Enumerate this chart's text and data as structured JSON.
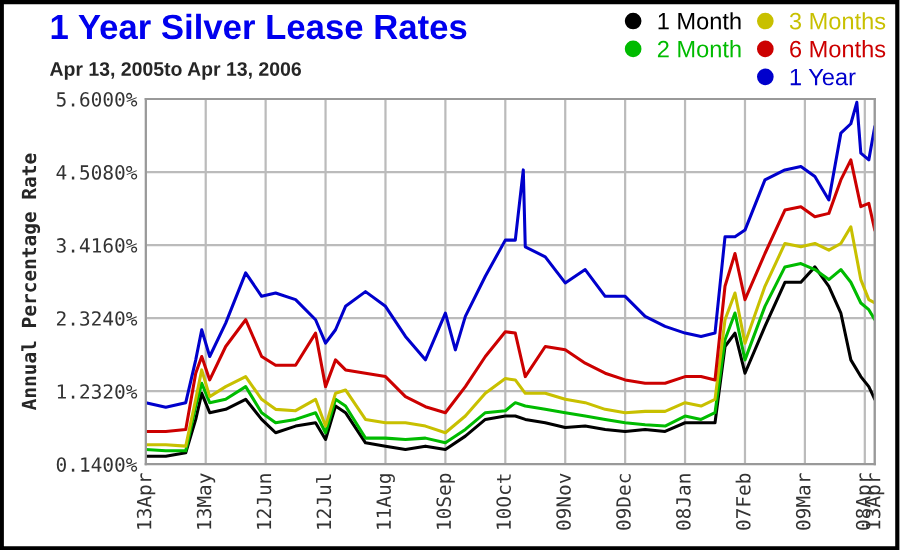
{
  "chart_data": {
    "type": "line",
    "title": "1 Year Silver Lease Rates",
    "subtitle": "Apr 13, 2005to Apr 13, 2006",
    "ylabel": "Annual Percentage Rate",
    "x": [
      "2005-04-13",
      "2005-04-23",
      "2005-05-03",
      "2005-05-08",
      "2005-05-11",
      "2005-05-15",
      "2005-05-23",
      "2005-06-02",
      "2005-06-10",
      "2005-06-17",
      "2005-06-27",
      "2005-07-07",
      "2005-07-12",
      "2005-07-17",
      "2005-07-22",
      "2005-08-01",
      "2005-08-11",
      "2005-08-21",
      "2005-08-31",
      "2005-09-10",
      "2005-09-20",
      "2005-09-30",
      "2005-10-10",
      "2005-10-15",
      "2005-10-20",
      "2005-10-30",
      "2005-11-09",
      "2005-11-19",
      "2005-11-29",
      "2005-12-09",
      "2005-12-19",
      "2005-12-29",
      "2006-01-08",
      "2006-01-16",
      "2006-01-23",
      "2006-01-28",
      "2006-02-02",
      "2006-02-07",
      "2006-02-17",
      "2006-02-27",
      "2006-03-07",
      "2006-03-14",
      "2006-03-21",
      "2006-03-27",
      "2006-04-01",
      "2006-04-06",
      "2006-04-10",
      "2006-04-13"
    ],
    "series": [
      {
        "name": "1 Month",
        "color": "#000000",
        "values": [
          0.26,
          0.26,
          0.31,
          0.81,
          1.2,
          0.91,
          0.96,
          1.11,
          0.81,
          0.61,
          0.71,
          0.76,
          0.51,
          1.01,
          0.91,
          0.46,
          0.41,
          0.36,
          0.41,
          0.36,
          0.56,
          0.81,
          0.86,
          0.86,
          0.81,
          0.76,
          0.69,
          0.71,
          0.66,
          0.63,
          0.66,
          0.63,
          0.76,
          0.76,
          0.76,
          1.9,
          2.1,
          1.5,
          2.2,
          2.86,
          2.86,
          3.09,
          2.8,
          2.4,
          1.7,
          1.45,
          1.3,
          1.11
        ]
      },
      {
        "name": "2 Month",
        "color": "#00bb00",
        "values": [
          0.36,
          0.34,
          0.34,
          1.01,
          1.35,
          1.06,
          1.11,
          1.3,
          0.91,
          0.76,
          0.81,
          0.91,
          0.61,
          1.11,
          1.01,
          0.53,
          0.53,
          0.51,
          0.53,
          0.46,
          0.66,
          0.91,
          0.94,
          1.06,
          1.01,
          0.96,
          0.91,
          0.86,
          0.81,
          0.76,
          0.73,
          0.71,
          0.86,
          0.81,
          0.91,
          2.0,
          2.4,
          1.7,
          2.5,
          3.09,
          3.14,
          3.05,
          2.9,
          3.05,
          2.86,
          2.55,
          2.45,
          2.3
        ]
      },
      {
        "name": "3 Months",
        "color": "#c8c000",
        "values": [
          0.43,
          0.43,
          0.41,
          1.11,
          1.55,
          1.15,
          1.3,
          1.45,
          1.11,
          0.96,
          0.94,
          1.11,
          0.71,
          1.2,
          1.25,
          0.81,
          0.76,
          0.76,
          0.71,
          0.61,
          0.86,
          1.2,
          1.42,
          1.4,
          1.2,
          1.2,
          1.11,
          1.06,
          0.96,
          0.91,
          0.93,
          0.93,
          1.06,
          1.01,
          1.11,
          2.3,
          2.7,
          1.95,
          2.8,
          3.44,
          3.39,
          3.44,
          3.34,
          3.44,
          3.69,
          2.9,
          2.6,
          2.55
        ]
      },
      {
        "name": "6 Months",
        "color": "#cc0000",
        "values": [
          0.63,
          0.63,
          0.66,
          1.5,
          1.75,
          1.4,
          1.9,
          2.3,
          1.75,
          1.62,
          1.62,
          2.1,
          1.3,
          1.7,
          1.55,
          1.5,
          1.45,
          1.15,
          1.0,
          0.91,
          1.3,
          1.75,
          2.12,
          2.1,
          1.45,
          1.9,
          1.85,
          1.65,
          1.5,
          1.4,
          1.35,
          1.35,
          1.45,
          1.45,
          1.4,
          2.8,
          3.29,
          2.6,
          3.29,
          3.94,
          3.99,
          3.84,
          3.89,
          4.39,
          4.69,
          3.99,
          4.04,
          3.64
        ]
      },
      {
        "name": "1 Year",
        "color": "#0000cc",
        "x": [
          "2005-04-13",
          "2005-04-23",
          "2005-05-03",
          "2005-05-08",
          "2005-05-11",
          "2005-05-15",
          "2005-05-23",
          "2005-06-02",
          "2005-06-10",
          "2005-06-17",
          "2005-06-27",
          "2005-07-07",
          "2005-07-12",
          "2005-07-17",
          "2005-07-22",
          "2005-08-01",
          "2005-08-11",
          "2005-08-21",
          "2005-08-31",
          "2005-09-10",
          "2005-09-15",
          "2005-09-20",
          "2005-09-30",
          "2005-10-10",
          "2005-10-15",
          "2005-10-19",
          "2005-10-20",
          "2005-10-30",
          "2005-11-09",
          "2005-11-19",
          "2005-11-29",
          "2005-12-09",
          "2005-12-19",
          "2005-12-29",
          "2006-01-08",
          "2006-01-16",
          "2006-01-23",
          "2006-01-28",
          "2006-02-02",
          "2006-02-07",
          "2006-02-17",
          "2006-02-27",
          "2006-03-07",
          "2006-03-14",
          "2006-03-21",
          "2006-03-27",
          "2006-04-01",
          "2006-04-04",
          "2006-04-06",
          "2006-04-10",
          "2006-04-13"
        ],
        "values": [
          1.06,
          0.99,
          1.06,
          1.7,
          2.15,
          1.75,
          2.25,
          3.0,
          2.65,
          2.7,
          2.6,
          2.3,
          1.95,
          2.15,
          2.5,
          2.72,
          2.5,
          2.05,
          1.7,
          2.4,
          1.85,
          2.35,
          2.95,
          3.49,
          3.49,
          4.54,
          3.39,
          3.24,
          2.85,
          3.05,
          2.65,
          2.65,
          2.35,
          2.2,
          2.1,
          2.05,
          2.1,
          3.54,
          3.54,
          3.64,
          4.39,
          4.54,
          4.59,
          4.44,
          4.09,
          5.09,
          5.23,
          5.55,
          4.79,
          4.69,
          5.19
        ]
      }
    ],
    "ylim": [
      0.14,
      5.6
    ],
    "yticks": [
      {
        "value": 0.14,
        "label": "0.1400%"
      },
      {
        "value": 1.232,
        "label": "1.2320%"
      },
      {
        "value": 2.324,
        "label": "2.3240%"
      },
      {
        "value": 3.416,
        "label": "3.4160%"
      },
      {
        "value": 4.508,
        "label": "4.5080%"
      },
      {
        "value": 5.6,
        "label": "5.6000%"
      }
    ],
    "xlim": [
      "2005-04-13",
      "2006-04-13"
    ],
    "xticks": [
      {
        "value": "2005-04-13",
        "label": "13Apr"
      },
      {
        "value": "2005-05-13",
        "label": "13May"
      },
      {
        "value": "2005-06-12",
        "label": "12Jun"
      },
      {
        "value": "2005-07-12",
        "label": "12Jul"
      },
      {
        "value": "2005-08-11",
        "label": "11Aug"
      },
      {
        "value": "2005-09-10",
        "label": "10Sep"
      },
      {
        "value": "2005-10-10",
        "label": "10Oct"
      },
      {
        "value": "2005-11-09",
        "label": "09Nov"
      },
      {
        "value": "2005-12-09",
        "label": "09Dec"
      },
      {
        "value": "2006-01-08",
        "label": "08Jan"
      },
      {
        "value": "2006-02-07",
        "label": "07Feb"
      },
      {
        "value": "2006-03-09",
        "label": "09Mar"
      },
      {
        "value": "2006-04-08",
        "label": "08Apr"
      },
      {
        "value": "2006-04-13",
        "label": "13Apr"
      }
    ],
    "grid": true,
    "legend": "top right",
    "marker": "none",
    "line_style": "solid"
  }
}
